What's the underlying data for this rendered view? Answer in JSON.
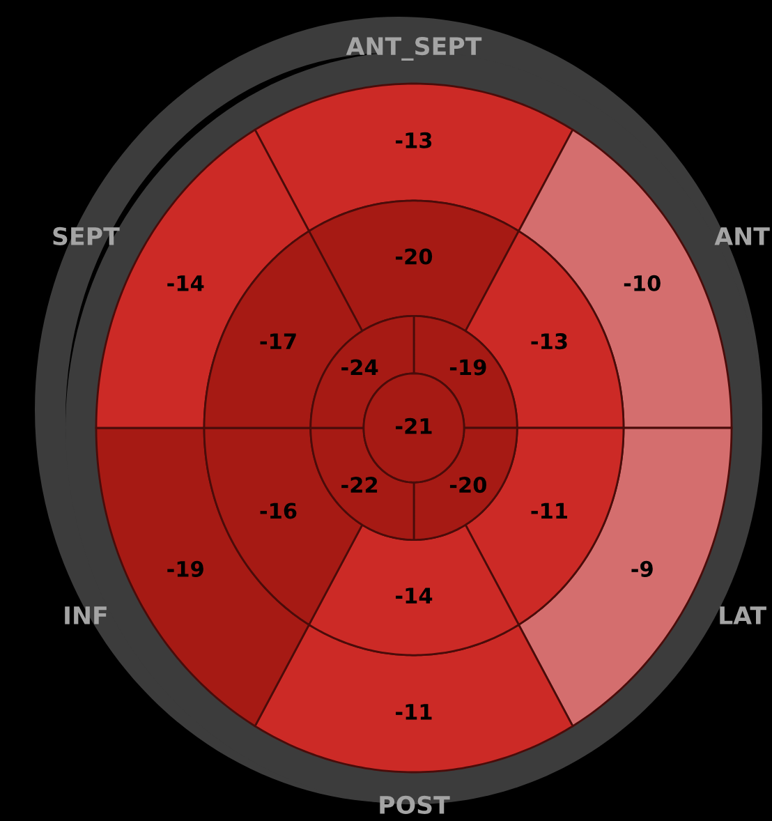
{
  "chart_data": {
    "type": "other",
    "categories": [
      "ANT_SEPT",
      "ANT",
      "LAT",
      "POST",
      "INF",
      "SEPT"
    ],
    "series": [
      {
        "values": [
          -13,
          -10,
          -9,
          -11,
          -19,
          -14
        ],
        "colors": [
          "#cc2a26",
          "#d46e6e",
          "#d46e6e",
          "#cc2a26",
          "#a61a14",
          "#cc2a26"
        ]
      },
      {
        "values": [
          -20,
          -13,
          -11,
          -14,
          -16,
          -17
        ],
        "colors": [
          "#a61a14",
          "#cc2a26",
          "#cc2a26",
          "#cc2a26",
          "#a61a14",
          "#a61a14"
        ]
      },
      {
        "values": [
          null,
          -19,
          -20,
          null,
          -22,
          -24
        ],
        "colors": [
          null,
          "#a61a14",
          "#a61a14",
          null,
          "#a61a14",
          "#a61a14"
        ]
      }
    ],
    "data_labels": true,
    "annotations": [
      "-21"
    ]
  }
}
